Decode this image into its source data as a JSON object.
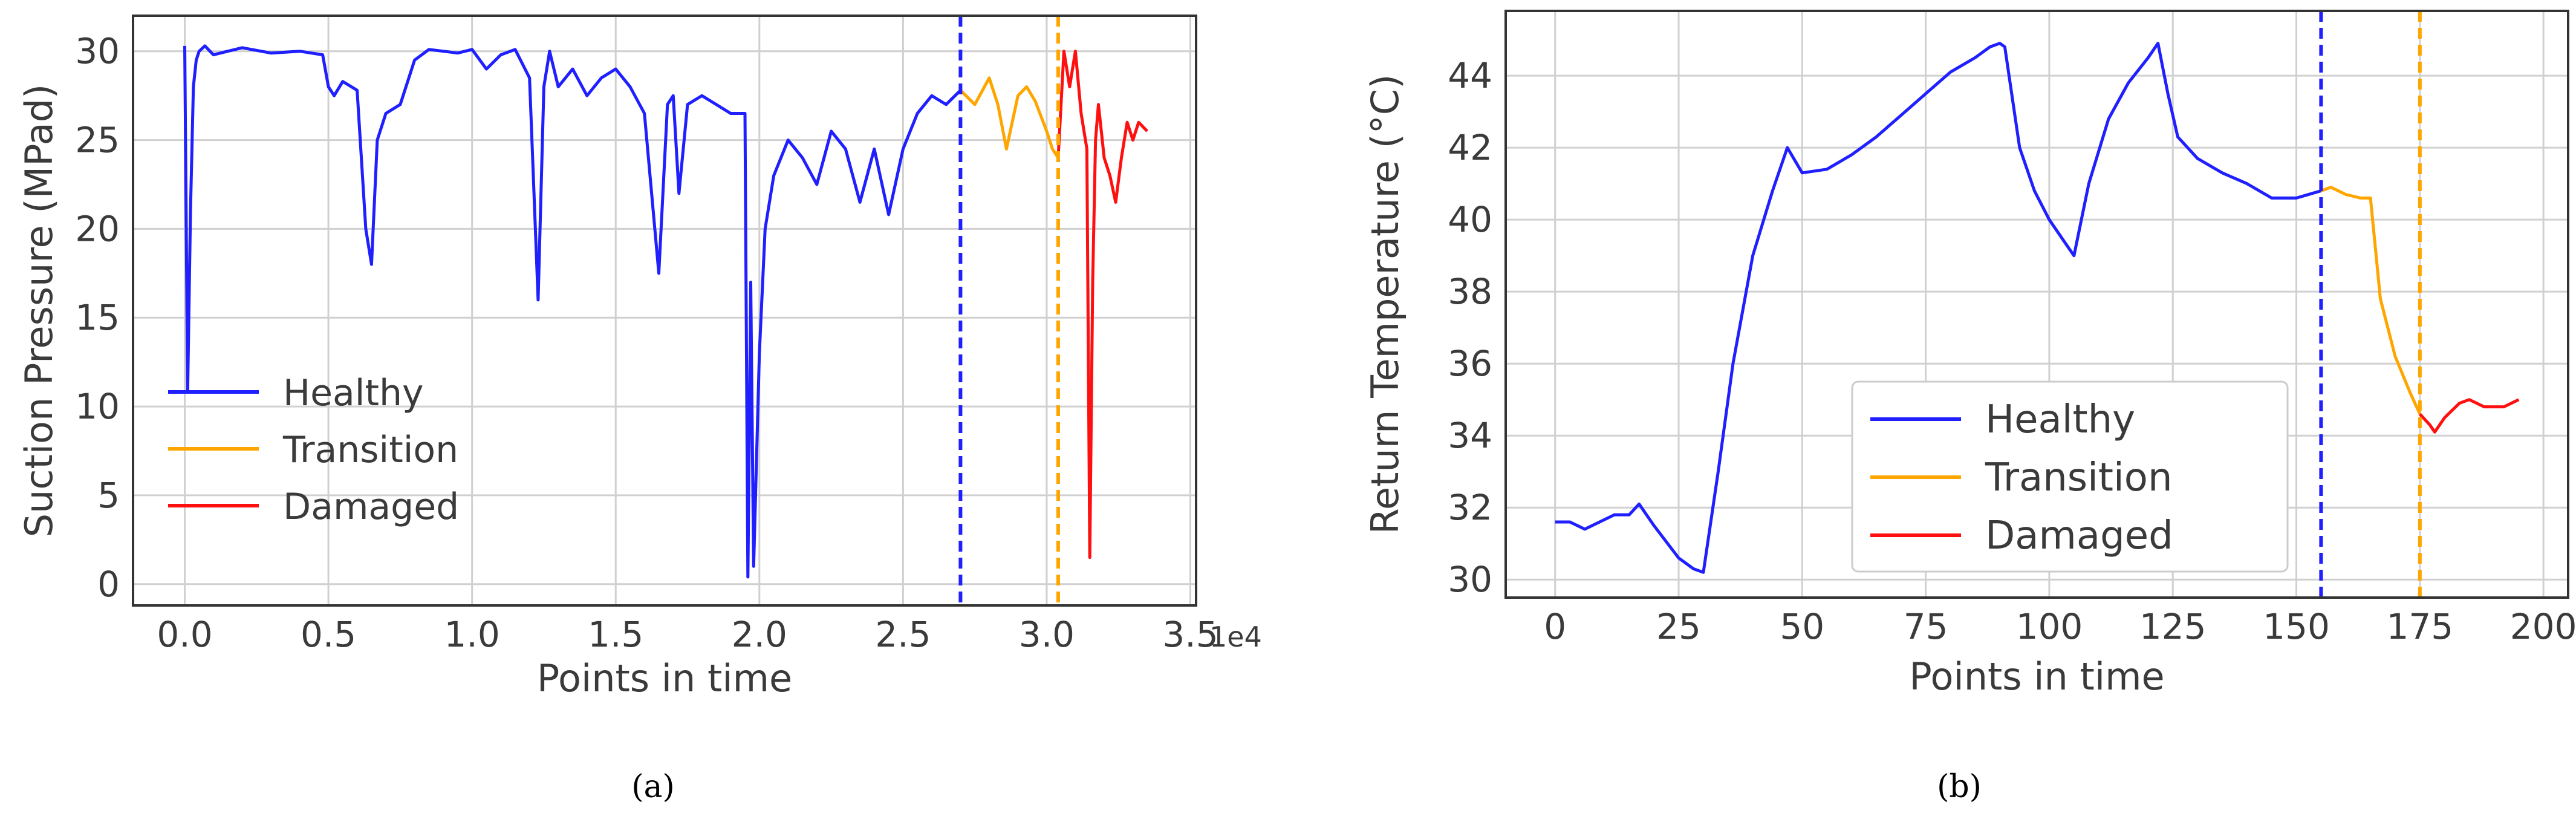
{
  "figure": {
    "captions": [
      "(a)",
      "(b)"
    ]
  },
  "chart_data": [
    {
      "type": "line",
      "xlabel": "Points in time",
      "ylabel": "Suction Pressure (MPad)",
      "x_offset_label": "1e4",
      "xlim": [
        -0.18,
        3.52
      ],
      "ylim": [
        -1.2,
        32.0
      ],
      "xticks": [
        0.0,
        0.5,
        1.0,
        1.5,
        2.0,
        2.5,
        3.0,
        3.5
      ],
      "xtick_labels": [
        "0.0",
        "0.5",
        "1.0",
        "1.5",
        "2.0",
        "2.5",
        "3.0",
        "3.5"
      ],
      "yticks": [
        0,
        5,
        10,
        15,
        20,
        25,
        30
      ],
      "ytick_labels": [
        "0",
        "5",
        "10",
        "15",
        "20",
        "25",
        "30"
      ],
      "grid": true,
      "legend": {
        "location": "lower-left",
        "entries": [
          "Healthy",
          "Transition",
          "Damaged"
        ]
      },
      "colors": {
        "Healthy": "#1f1fff",
        "Transition": "#ffa500",
        "Damaged": "#ff1010"
      },
      "vlines": [
        {
          "x": 2.7,
          "color": "#1f1fff",
          "style": "dashed"
        },
        {
          "x": 3.04,
          "color": "#ffa500",
          "style": "dashed"
        }
      ],
      "series": [
        {
          "name": "Healthy",
          "x": [
            0.0,
            0.01,
            0.02,
            0.03,
            0.04,
            0.05,
            0.07,
            0.1,
            0.15,
            0.2,
            0.3,
            0.4,
            0.48,
            0.5,
            0.52,
            0.55,
            0.6,
            0.63,
            0.65,
            0.67,
            0.7,
            0.75,
            0.8,
            0.85,
            0.9,
            0.95,
            1.0,
            1.05,
            1.1,
            1.15,
            1.2,
            1.23,
            1.25,
            1.27,
            1.3,
            1.35,
            1.4,
            1.45,
            1.5,
            1.55,
            1.6,
            1.65,
            1.68,
            1.7,
            1.72,
            1.75,
            1.8,
            1.85,
            1.9,
            1.95,
            1.96,
            1.97,
            1.98,
            2.0,
            2.02,
            2.05,
            2.1,
            2.15,
            2.2,
            2.25,
            2.3,
            2.35,
            2.4,
            2.45,
            2.5,
            2.55,
            2.6,
            2.65,
            2.7
          ],
          "y": [
            30.3,
            10.8,
            21.0,
            28.0,
            29.5,
            30.0,
            30.3,
            29.8,
            30.0,
            30.2,
            29.9,
            30.0,
            29.8,
            28.0,
            27.5,
            28.3,
            27.8,
            20.0,
            18.0,
            25.0,
            26.5,
            27.0,
            29.5,
            30.1,
            30.0,
            29.9,
            30.1,
            29.0,
            29.8,
            30.1,
            28.5,
            16.0,
            28.0,
            30.0,
            28.0,
            29.0,
            27.5,
            28.5,
            29.0,
            28.0,
            26.5,
            17.5,
            27.0,
            27.5,
            22.0,
            27.0,
            27.5,
            27.0,
            26.5,
            26.5,
            0.4,
            17.0,
            1.0,
            13.0,
            20.0,
            23.0,
            25.0,
            24.0,
            22.5,
            25.5,
            24.5,
            21.5,
            24.5,
            20.8,
            24.5,
            26.5,
            27.5,
            27.0,
            27.8
          ]
        },
        {
          "name": "Transition",
          "x": [
            2.7,
            2.75,
            2.8,
            2.83,
            2.86,
            2.88,
            2.9,
            2.93,
            2.96,
            3.0,
            3.02,
            3.04
          ],
          "y": [
            27.8,
            27.0,
            28.5,
            27.0,
            24.5,
            26.0,
            27.5,
            28.0,
            27.2,
            25.5,
            24.5,
            24.0
          ]
        },
        {
          "name": "Damaged",
          "x": [
            3.04,
            3.06,
            3.08,
            3.1,
            3.12,
            3.14,
            3.15,
            3.16,
            3.17,
            3.18,
            3.2,
            3.22,
            3.24,
            3.26,
            3.28,
            3.3,
            3.32,
            3.35
          ],
          "y": [
            24.0,
            30.0,
            28.0,
            30.0,
            26.5,
            24.5,
            1.5,
            17.0,
            25.0,
            27.0,
            24.0,
            23.0,
            21.5,
            24.0,
            26.0,
            25.0,
            26.0,
            25.5
          ]
        }
      ]
    },
    {
      "type": "line",
      "xlabel": "Points in time",
      "ylabel": "Return Temperature (°C)",
      "xlim": [
        -10,
        205
      ],
      "ylim": [
        29.5,
        45.8
      ],
      "xticks": [
        0,
        25,
        50,
        75,
        100,
        125,
        150,
        175,
        200
      ],
      "xtick_labels": [
        "0",
        "25",
        "50",
        "75",
        "100",
        "125",
        "150",
        "175",
        "200"
      ],
      "yticks": [
        30,
        32,
        34,
        36,
        38,
        40,
        42,
        44
      ],
      "ytick_labels": [
        "30",
        "32",
        "34",
        "36",
        "38",
        "40",
        "42",
        "44"
      ],
      "grid": true,
      "legend": {
        "location": "lower-center",
        "entries": [
          "Healthy",
          "Transition",
          "Damaged"
        ]
      },
      "colors": {
        "Healthy": "#1f1fff",
        "Transition": "#ffa500",
        "Damaged": "#ff1010"
      },
      "vlines": [
        {
          "x": 155,
          "color": "#1f1fff",
          "style": "dashed"
        },
        {
          "x": 175,
          "color": "#ffa500",
          "style": "dashed"
        }
      ],
      "series": [
        {
          "name": "Healthy",
          "x": [
            0,
            3,
            6,
            9,
            12,
            15,
            17,
            20,
            25,
            28,
            30,
            33,
            36,
            40,
            44,
            47,
            50,
            55,
            60,
            65,
            70,
            75,
            80,
            85,
            88,
            90,
            91,
            94,
            97,
            100,
            103,
            105,
            108,
            112,
            116,
            120,
            122,
            124,
            126,
            130,
            135,
            140,
            145,
            150,
            155
          ],
          "y": [
            31.6,
            31.6,
            31.4,
            31.6,
            31.8,
            31.8,
            32.1,
            31.5,
            30.6,
            30.3,
            30.2,
            33.0,
            36.0,
            39.0,
            40.8,
            42.0,
            41.3,
            41.4,
            41.8,
            42.3,
            42.9,
            43.5,
            44.1,
            44.5,
            44.8,
            44.9,
            44.8,
            42.0,
            40.8,
            40.0,
            39.4,
            39.0,
            41.0,
            42.8,
            43.8,
            44.5,
            44.9,
            43.5,
            42.3,
            41.7,
            41.3,
            41.0,
            40.6,
            40.6,
            40.8
          ]
        },
        {
          "name": "Transition",
          "x": [
            155,
            157,
            160,
            163,
            165,
            167,
            170,
            173,
            175
          ],
          "y": [
            40.8,
            40.9,
            40.7,
            40.6,
            40.6,
            37.8,
            36.2,
            35.2,
            34.6
          ]
        },
        {
          "name": "Damaged",
          "x": [
            175,
            177,
            178,
            180,
            183,
            185,
            188,
            190,
            192,
            195
          ],
          "y": [
            34.6,
            34.3,
            34.1,
            34.5,
            34.9,
            35.0,
            34.8,
            34.8,
            34.8,
            35.0
          ]
        }
      ]
    }
  ]
}
